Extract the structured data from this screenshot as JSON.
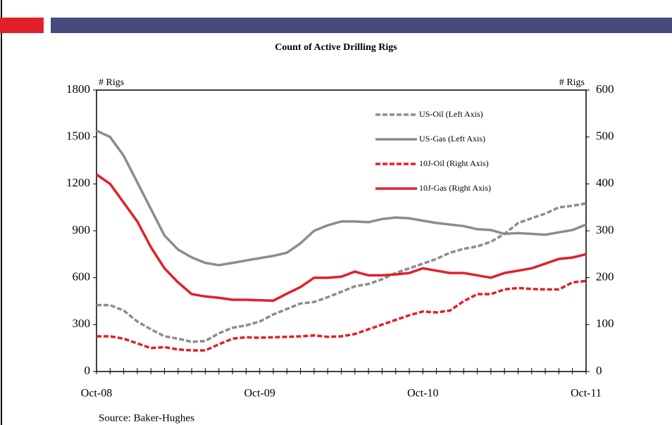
{
  "chart_data": {
    "type": "line",
    "title": "Count of Active Drilling Rigs",
    "y_label": "# Rigs",
    "y2_label": "# Rigs",
    "source": "Source: Baker-Hughes",
    "categories": [
      "Oct-08",
      null,
      null,
      null,
      null,
      null,
      null,
      null,
      null,
      null,
      null,
      null,
      "Oct-09",
      null,
      null,
      null,
      null,
      null,
      null,
      null,
      null,
      null,
      null,
      null,
      "Oct-10",
      null,
      null,
      null,
      null,
      null,
      null,
      null,
      null,
      null,
      null,
      null,
      "Oct-11"
    ],
    "ylim": [
      0,
      1800
    ],
    "yticks": [
      0,
      300,
      600,
      900,
      1200,
      1500,
      1800
    ],
    "y2lim": [
      0,
      600
    ],
    "y2ticks": [
      0,
      100,
      200,
      300,
      400,
      500,
      600
    ],
    "series": [
      {
        "name": "US-Oil (Left Axis)",
        "color": "#8c8c8c",
        "dash": true,
        "axis": "y",
        "values": [
          425,
          425,
          390,
          320,
          270,
          225,
          210,
          190,
          195,
          245,
          280,
          295,
          320,
          365,
          400,
          435,
          445,
          475,
          510,
          545,
          560,
          590,
          630,
          660,
          690,
          720,
          760,
          785,
          800,
          830,
          880,
          950,
          980,
          1010,
          1050,
          1060,
          1075
        ]
      },
      {
        "name": "US-Gas (Left  Axis)",
        "color": "#8c8c8c",
        "dash": false,
        "axis": "y",
        "values": [
          1540,
          1500,
          1380,
          1210,
          1040,
          870,
          780,
          730,
          695,
          680,
          695,
          710,
          725,
          740,
          760,
          820,
          900,
          935,
          960,
          960,
          955,
          975,
          985,
          980,
          965,
          950,
          940,
          930,
          910,
          905,
          880,
          885,
          880,
          875,
          890,
          905,
          940
        ]
      },
      {
        "name": "10J-Oil (Right Axis)",
        "color": "#e0202a",
        "dash": true,
        "axis": "y2",
        "values": [
          75,
          75,
          70,
          60,
          50,
          52,
          47,
          45,
          45,
          58,
          70,
          73,
          72,
          73,
          74,
          75,
          77,
          74,
          75,
          80,
          90,
          100,
          110,
          120,
          128,
          126,
          130,
          150,
          165,
          165,
          175,
          178,
          176,
          175,
          175,
          190,
          193
        ]
      },
      {
        "name": "10J-Gas (Right Axis)",
        "color": "#e0202a",
        "dash": false,
        "axis": "y2",
        "values": [
          420,
          400,
          360,
          320,
          265,
          220,
          190,
          165,
          160,
          157,
          153,
          153,
          152,
          151,
          166,
          180,
          200,
          200,
          202,
          213,
          205,
          205,
          207,
          210,
          220,
          215,
          210,
          210,
          205,
          200,
          210,
          215,
          220,
          230,
          240,
          243,
          250
        ]
      }
    ]
  }
}
